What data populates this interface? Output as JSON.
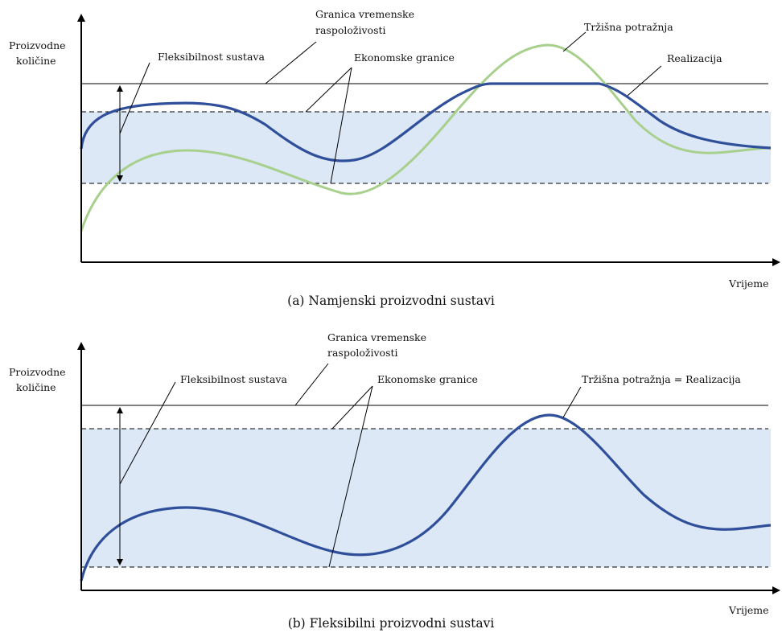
{
  "colors": {
    "band_fill": "#dce8f6",
    "realization_line": "#2f4f9a",
    "demand_line": "#a8d08d",
    "axis": "#000000",
    "guide_lines": "#000000"
  },
  "panel_a": {
    "caption": "(a) Namjenski proizvodni sustavi",
    "ylabel_line1": "Proizvodne",
    "ylabel_line2": "količine",
    "xlabel": "Vrijeme",
    "label_time_limit_line1": "Granica vremenske",
    "label_time_limit_line2": "raspoloživosti",
    "label_flexibility": "Fleksibilnost sustava",
    "label_economic_limits": "Ekonomske granice",
    "label_market_demand": "Tržišna potražnja",
    "label_realization": "Realizacija"
  },
  "panel_b": {
    "caption": "(b) Fleksibilni proizvodni sustavi",
    "ylabel_line1": "Proizvodne",
    "ylabel_line2": "količine",
    "xlabel": "Vrijeme",
    "label_time_limit_line1": "Granica vremenske",
    "label_time_limit_line2": "raspoloživosti",
    "label_flexibility": "Fleksibilnost sustava",
    "label_economic_limits": "Ekonomske granice",
    "label_demand_equals_realization": "Tržišna potražnja = Realizacija"
  }
}
